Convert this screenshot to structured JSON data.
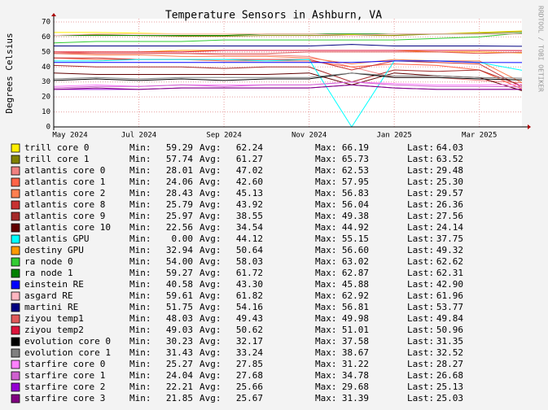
{
  "chart_data": {
    "type": "line",
    "title": "Temperature Sensors in Ashburn, VA",
    "y_label": "Degrees Celsius",
    "watermark": "RRDTOOL / TOBI OETIKER",
    "grid": true,
    "ylim": [
      0,
      70
    ],
    "yticks": [
      0,
      10,
      20,
      30,
      40,
      50,
      60,
      70
    ],
    "xlim": [
      "2024-05",
      "2025-04"
    ],
    "xticks": [
      {
        "value": "2024-05",
        "label": "May 2024"
      },
      {
        "value": "2024-07",
        "label": "Jul 2024"
      },
      {
        "value": "2024-09",
        "label": "Sep 2024"
      },
      {
        "value": "2024-11",
        "label": "Nov 2024"
      },
      {
        "value": "2025-01",
        "label": "Jan 2025"
      },
      {
        "value": "2025-03",
        "label": "Mar 2025"
      }
    ],
    "x": [
      "2024-05",
      "2024-06",
      "2024-07",
      "2024-08",
      "2024-09",
      "2024-10",
      "2024-11",
      "2024-12",
      "2025-01",
      "2025-02",
      "2025-03",
      "2025-04"
    ],
    "stat_labels": [
      "Min:",
      "Avg:",
      "Max:",
      "Last:"
    ],
    "series": [
      {
        "name": "trill core 0",
        "color": "#ffee00",
        "values": [
          63,
          63,
          62.5,
          62,
          62,
          62,
          62,
          61.5,
          61,
          62,
          63,
          64.03
        ],
        "min": 59.29,
        "avg": 62.24,
        "max": 66.19,
        "last": 64.03
      },
      {
        "name": "trill core 1",
        "color": "#808000",
        "values": [
          61,
          61.5,
          61,
          60.5,
          60.5,
          61,
          61,
          61,
          61,
          62,
          62.5,
          63.52
        ],
        "min": 57.74,
        "avg": 61.27,
        "max": 65.73,
        "last": 63.52
      },
      {
        "name": "atlantis core 0",
        "color": "#f08080",
        "values": [
          50,
          49,
          49,
          49,
          48,
          48,
          47,
          40,
          33,
          33,
          31,
          29.48
        ],
        "min": 28.01,
        "avg": 47.02,
        "max": 62.53,
        "last": 29.48
      },
      {
        "name": "atlantis core 1",
        "color": "#ff6347",
        "values": [
          46,
          45,
          45,
          45,
          44,
          44,
          44,
          40,
          42,
          41,
          38,
          25.3
        ],
        "min": 24.06,
        "avg": {
          "value": 42.6,
          "label": "42.60"
        },
        "max": 57.95,
        "last": {
          "value": 25.3,
          "label": "25.30"
        }
      },
      {
        "name": "atlantis core 2",
        "color": "#ff7f50",
        "values": [
          49,
          48,
          48,
          47,
          47,
          47,
          46,
          42,
          45,
          44,
          44,
          29.57
        ],
        "min": 28.43,
        "avg": 45.13,
        "max": 56.83,
        "last": 29.57
      },
      {
        "name": "atlantis core 8",
        "color": "#c83232",
        "values": [
          46,
          46,
          45,
          45,
          45,
          45,
          45,
          38,
          44,
          43,
          42,
          26.36
        ],
        "min": 25.79,
        "avg": 43.92,
        "max": 56.04,
        "last": 26.36
      },
      {
        "name": "atlantis core 9",
        "color": "#a52a2a",
        "values": [
          41,
          40,
          40,
          40,
          39,
          40,
          40,
          30,
          38,
          37,
          38,
          27.56
        ],
        "min": 25.97,
        "avg": 38.55,
        "max": 49.38,
        "last": 27.56
      },
      {
        "name": "atlantis core 10",
        "color": "#600000",
        "values": [
          36,
          35,
          35,
          35,
          35,
          35,
          36,
          28,
          36,
          34,
          33,
          24.14
        ],
        "min": 22.56,
        "avg": 34.54,
        "max": 44.92,
        "last": 24.14
      },
      {
        "name": "atlantis GPU",
        "color": "#00ffff",
        "values": [
          44,
          44,
          45,
          45,
          45,
          44,
          45,
          0,
          44,
          44,
          43,
          37.75
        ],
        "min": {
          "value": 0,
          "label": "0.00"
        },
        "avg": 44.12,
        "max": 55.15,
        "last": 37.75
      },
      {
        "name": "destiny GPU",
        "color": "#ff9900",
        "values": [
          50,
          50,
          50,
          51,
          51,
          51,
          51,
          51,
          51,
          50,
          50,
          49.32
        ],
        "min": 32.94,
        "avg": 50.64,
        "max": {
          "value": 56.6,
          "label": "56.60"
        },
        "last": 49.32
      },
      {
        "name": "ra node 0",
        "color": "#33cc33",
        "values": [
          56,
          57,
          57,
          57,
          58,
          58,
          58,
          58,
          58,
          59,
          60,
          62.62
        ],
        "min": {
          "value": 54,
          "label": "54.00"
        },
        "avg": 58.03,
        "max": 63.02,
        "last": 62.62
      },
      {
        "name": "ra node 1",
        "color": "#008000",
        "values": [
          61,
          61,
          61,
          61,
          61,
          62,
          62,
          62,
          62,
          62,
          62,
          62.31
        ],
        "min": 59.27,
        "avg": 61.72,
        "max": 62.87,
        "last": 62.31
      },
      {
        "name": "einstein RE",
        "color": "#0000ff",
        "values": [
          43,
          43,
          43,
          43,
          43,
          43,
          43,
          43,
          44,
          44,
          43,
          42.9
        ],
        "min": 40.58,
        "avg": {
          "value": 43.3,
          "label": "43.30"
        },
        "max": 45.88,
        "last": {
          "value": 42.9,
          "label": "42.90"
        }
      },
      {
        "name": "asgard RE",
        "color": "#ffb6c1",
        "values": [
          61,
          62,
          62,
          62,
          62,
          62,
          62,
          61,
          62,
          62,
          62,
          61.96
        ],
        "min": 59.61,
        "avg": 61.82,
        "max": 62.92,
        "last": 61.96
      },
      {
        "name": "martini RE",
        "color": "#000080",
        "values": [
          54,
          54,
          54,
          54,
          54,
          54,
          54,
          55,
          54,
          54,
          54,
          53.77
        ],
        "min": 51.75,
        "avg": 54.16,
        "max": 56.81,
        "last": 53.77
      },
      {
        "name": "ziyou temp1",
        "color": "#e05a5a",
        "values": [
          49,
          49,
          49,
          49,
          49,
          49,
          50,
          50,
          50,
          50,
          49,
          49.84
        ],
        "min": 48.03,
        "avg": 49.43,
        "max": 49.98,
        "last": 49.84
      },
      {
        "name": "ziyou temp2",
        "color": "#dc143c",
        "values": [
          50,
          50,
          50,
          50,
          51,
          51,
          51,
          51,
          51,
          51,
          51,
          50.96
        ],
        "min": 49.03,
        "avg": 50.62,
        "max": 51.01,
        "last": 50.96
      },
      {
        "name": "evolution core 0",
        "color": "#000000",
        "values": [
          31,
          32,
          31,
          32,
          31,
          32,
          32,
          36,
          33,
          33,
          32,
          31.35
        ],
        "min": 30.23,
        "avg": 32.17,
        "max": 37.58,
        "last": 31.35
      },
      {
        "name": "evolution core 1",
        "color": "#808080",
        "values": [
          32,
          33,
          32,
          33,
          33,
          33,
          33,
          36,
          34,
          34,
          33,
          32.52
        ],
        "min": 31.43,
        "avg": 33.24,
        "max": 38.67,
        "last": 32.52
      },
      {
        "name": "starfire core 0",
        "color": "#ff80ff",
        "values": [
          27,
          28,
          27,
          28,
          28,
          28,
          28,
          30,
          29,
          28,
          28,
          28.27
        ],
        "min": 25.27,
        "avg": 27.85,
        "max": 31.22,
        "last": 28.27
      },
      {
        "name": "starfire core 1",
        "color": "#d060d0",
        "values": [
          26,
          27,
          27,
          28,
          27,
          28,
          28,
          30,
          28,
          27,
          27,
          26.68
        ],
        "min": 24.04,
        "avg": 27.68,
        "max": 34.78,
        "last": 26.68
      },
      {
        "name": "starfire core 2",
        "color": "#9400d3",
        "values": [
          25,
          25,
          25,
          26,
          26,
          26,
          26,
          28,
          26,
          25,
          25,
          25.13
        ],
        "min": 22.21,
        "avg": 25.66,
        "max": 29.68,
        "last": 25.13
      },
      {
        "name": "starfire core 3",
        "color": "#800080",
        "values": [
          25,
          26,
          25,
          26,
          26,
          26,
          26,
          28,
          26,
          25,
          25,
          25.03
        ],
        "min": 21.85,
        "avg": 25.67,
        "max": 31.39,
        "last": 25.03
      }
    ]
  }
}
